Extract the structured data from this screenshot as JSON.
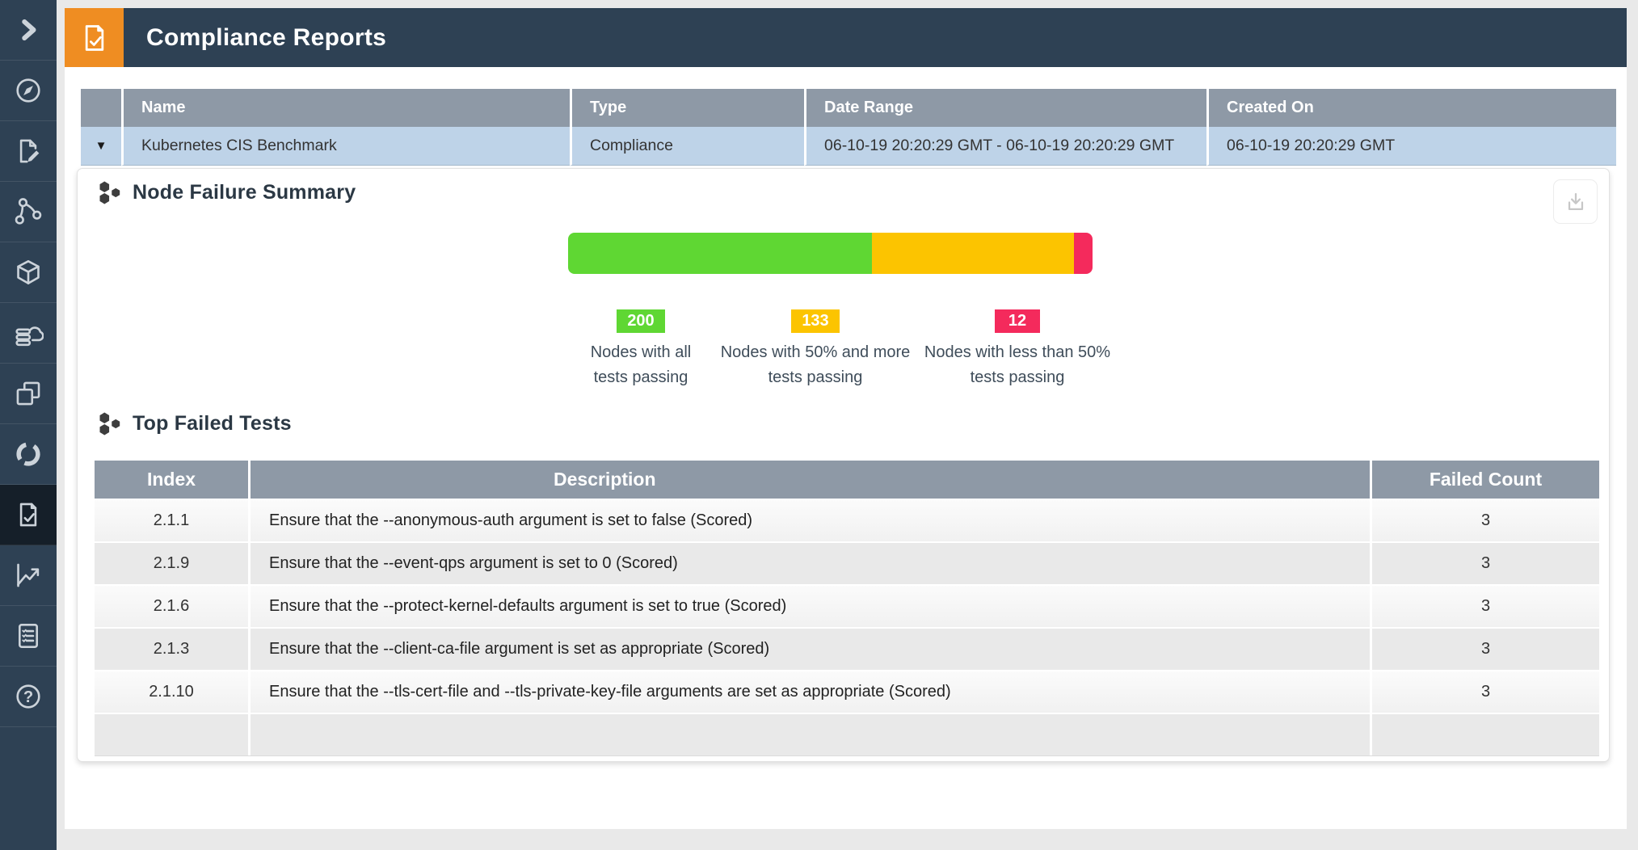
{
  "page": {
    "background": "#e9e9e9"
  },
  "sidebar": {
    "background": "#2e4154",
    "active_background": "#151f29",
    "icon_color": "#ccd3da",
    "items": [
      {
        "id": "expand-sidebar",
        "icon": "chevron-right-icon",
        "active": false
      },
      {
        "id": "dashboard",
        "icon": "compass-icon",
        "active": false
      },
      {
        "id": "policy",
        "icon": "document-edit-icon",
        "active": false
      },
      {
        "id": "network-activity",
        "icon": "network-icon",
        "active": false
      },
      {
        "id": "assets",
        "icon": "cube-icon",
        "active": false
      },
      {
        "id": "registries",
        "icon": "cloud-database-icon",
        "active": false
      },
      {
        "id": "containers",
        "icon": "layers-icon",
        "active": false
      },
      {
        "id": "processes",
        "icon": "refresh-icon",
        "active": false
      },
      {
        "id": "compliance-reports",
        "icon": "document-check-icon",
        "active": true
      },
      {
        "id": "bench-scans",
        "icon": "line-chart-icon",
        "active": false
      },
      {
        "id": "audit-logs",
        "icon": "document-list-icon",
        "active": false
      },
      {
        "id": "help",
        "icon": "help-icon",
        "active": false
      }
    ]
  },
  "header": {
    "title": "Compliance Reports",
    "icon": "document-check-icon",
    "accent_color": "#ef8d22",
    "background": "#2e4154"
  },
  "report_table": {
    "header_color": "#8e99a6",
    "row_color": "#bed3e8",
    "columns": {
      "name": "Name",
      "type": "Type",
      "date_range": "Date Range",
      "created_on": "Created On"
    },
    "row": {
      "expander": "▼",
      "name": "Kubernetes CIS Benchmark",
      "type": "Compliance",
      "date_range": "06-10-19 20:20:29 GMT - 06-10-19 20:20:29 GMT",
      "created_on": "06-10-19 20:20:29 GMT"
    }
  },
  "node_failure_summary": {
    "title": "Node Failure Summary",
    "download_icon": "download-icon",
    "chart_data": {
      "type": "bar",
      "stacked": true,
      "orientation": "horizontal",
      "total": 345,
      "segments": [
        {
          "label": "Nodes with all tests passing",
          "value": 200,
          "color": "#5fd733"
        },
        {
          "label": "Nodes with 50% and more tests passing",
          "value": 133,
          "color": "#fcc400"
        },
        {
          "label": "Nodes with less than 50% tests passing",
          "value": 12,
          "color": "#f42a5c"
        }
      ]
    }
  },
  "top_failed_tests": {
    "title": "Top Failed Tests",
    "columns": [
      "Index",
      "Description",
      "Failed Count"
    ],
    "rows": [
      {
        "index": "2.1.1",
        "description": "Ensure that the --anonymous-auth argument is set to false (Scored)",
        "failed_count": "3"
      },
      {
        "index": "2.1.9",
        "description": "Ensure that the --event-qps argument is set to 0 (Scored)",
        "failed_count": "3"
      },
      {
        "index": "2.1.6",
        "description": "Ensure that the --protect-kernel-defaults argument is set to true (Scored)",
        "failed_count": "3"
      },
      {
        "index": "2.1.3",
        "description": "Ensure that the --client-ca-file argument is set as appropriate (Scored)",
        "failed_count": "3"
      },
      {
        "index": "2.1.10",
        "description": "Ensure that the --tls-cert-file and --tls-private-key-file arguments are set as appropriate (Scored)",
        "failed_count": "3"
      }
    ]
  }
}
